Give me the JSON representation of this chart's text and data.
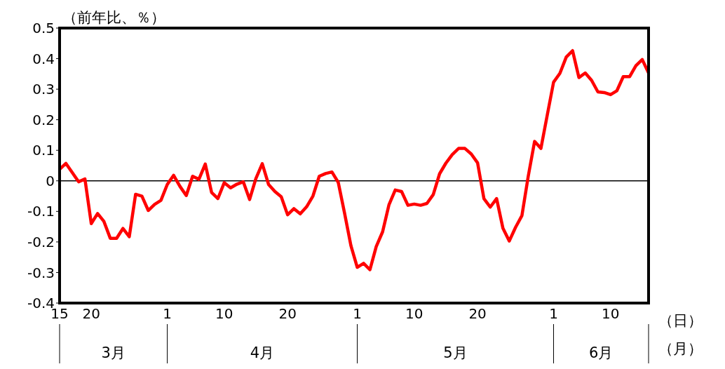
{
  "chart_data": {
    "type": "line",
    "ylabel": "（前年比、％）",
    "xlabel": "（日）",
    "x": [
      "--03-15",
      "--03-16",
      "--03-17",
      "--03-18",
      "--03-19",
      "--03-20",
      "--03-21",
      "--03-22",
      "--03-23",
      "--03-24",
      "--03-25",
      "--03-26",
      "--03-27",
      "--03-28",
      "--03-29",
      "--03-30",
      "--03-31",
      "--04-01",
      "--04-02",
      "--04-03",
      "--04-04",
      "--04-05",
      "--04-06",
      "--04-07",
      "--04-08",
      "--04-09",
      "--04-10",
      "--04-11",
      "--04-12",
      "--04-13",
      "--04-14",
      "--04-15",
      "--04-16",
      "--04-17",
      "--04-18",
      "--04-19",
      "--04-20",
      "--04-21",
      "--04-22",
      "--04-23",
      "--04-24",
      "--04-25",
      "--04-26",
      "--04-27",
      "--04-28",
      "--04-29",
      "--04-30",
      "--05-01",
      "--05-02",
      "--05-03",
      "--05-04",
      "--05-05",
      "--05-06",
      "--05-07",
      "--05-08",
      "--05-09",
      "--05-10",
      "--05-11",
      "--05-12",
      "--05-13",
      "--05-14",
      "--05-15",
      "--05-16",
      "--05-17",
      "--05-18",
      "--05-19",
      "--05-20",
      "--05-21",
      "--05-22",
      "--05-23",
      "--05-24",
      "--05-25",
      "--05-26",
      "--05-27",
      "--05-28",
      "--05-29",
      "--05-30",
      "--05-31",
      "--06-01",
      "--06-02",
      "--06-03",
      "--06-04",
      "--06-05",
      "--06-06",
      "--06-07",
      "--06-08",
      "--06-09",
      "--06-10",
      "--06-11",
      "--06-12",
      "--06-13",
      "--06-14",
      "--06-15",
      "--06-16"
    ],
    "series": [
      {
        "color": "#ff0000",
        "values": [
          0.038,
          0.057,
          0.027,
          -0.003,
          0.006,
          -0.14,
          -0.107,
          -0.133,
          -0.188,
          -0.188,
          -0.156,
          -0.183,
          -0.044,
          -0.05,
          -0.097,
          -0.077,
          -0.064,
          -0.012,
          0.018,
          -0.018,
          -0.048,
          0.015,
          0.005,
          0.055,
          -0.038,
          -0.058,
          -0.006,
          -0.023,
          -0.011,
          -0.003,
          -0.061,
          0.008,
          0.056,
          -0.012,
          -0.035,
          -0.052,
          -0.111,
          -0.091,
          -0.108,
          -0.085,
          -0.05,
          0.015,
          0.024,
          0.029,
          -0.005,
          -0.106,
          -0.212,
          -0.283,
          -0.27,
          -0.291,
          -0.215,
          -0.167,
          -0.079,
          -0.03,
          -0.035,
          -0.08,
          -0.076,
          -0.08,
          -0.074,
          -0.045,
          0.023,
          0.058,
          0.086,
          0.106,
          0.106,
          0.088,
          0.059,
          -0.058,
          -0.086,
          -0.058,
          -0.155,
          -0.197,
          -0.152,
          -0.114,
          0.015,
          0.129,
          0.106,
          0.215,
          0.323,
          0.352,
          0.405,
          0.426,
          0.338,
          0.353,
          0.329,
          0.291,
          0.289,
          0.282,
          0.295,
          0.341,
          0.341,
          0.377,
          0.397,
          0.353
        ]
      }
    ],
    "xlim": [
      "--03-15",
      "--06-16"
    ],
    "xticks": [
      {
        "value": "--03-15",
        "label": "15"
      },
      {
        "value": "--03-20",
        "label": "20"
      },
      {
        "value": "--04-01",
        "label": "1"
      },
      {
        "value": "--04-10",
        "label": "10"
      },
      {
        "value": "--04-20",
        "label": "20"
      },
      {
        "value": "--05-01",
        "label": "1"
      },
      {
        "value": "--05-10",
        "label": "10"
      },
      {
        "value": "--05-20",
        "label": "20"
      },
      {
        "value": "--06-01",
        "label": "1"
      },
      {
        "value": "--06-10",
        "label": "10"
      }
    ],
    "ylim": [
      -0.4,
      0.5
    ],
    "yticks": [
      -0.4,
      -0.3,
      -0.2,
      -0.1,
      0,
      0.1,
      0.2,
      0.3,
      0.4,
      0.5
    ],
    "ref_lines": [
      {
        "axis": "y",
        "value": 0,
        "color": "#000000"
      }
    ],
    "annotations": [
      "3月",
      "4月",
      "5月",
      "6月",
      "（月）"
    ],
    "grid": false,
    "legend": false,
    "marker": "none",
    "line_style": "solid"
  }
}
